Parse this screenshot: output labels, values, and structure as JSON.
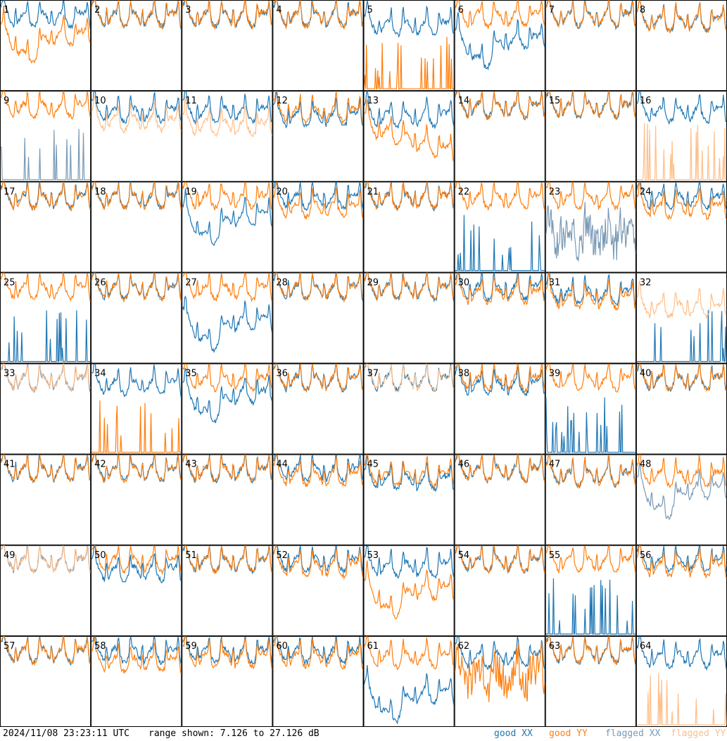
{
  "footer": {
    "timestamp": "2024/11/08 23:23:11 UTC",
    "range_text": "range shown: 7.126 to 27.126 dB"
  },
  "colors": {
    "good_xx": "#1f77b4",
    "good_yy": "#ff7f0e",
    "flagged_xx": "#7a9ab5",
    "flagged_yy": "#ffbf8a",
    "border": "#000000"
  },
  "chart_data": {
    "type": "line",
    "layout": "small-multiples 8x8",
    "ylim": [
      7.126,
      27.126
    ],
    "yunit": "dB",
    "legend": {
      "placement": "bottom-right",
      "entries": [
        {
          "name": "good XX",
          "color": "#1f77b4"
        },
        {
          "name": "good YY",
          "color": "#ff7f0e"
        },
        {
          "name": "flagged XX",
          "color": "#7a9ab5"
        },
        {
          "name": "flagged YY",
          "color": "#ffbf8a"
        }
      ]
    },
    "panels": [
      {
        "label": "1",
        "xx": {
          "state": "good",
          "level": 23
        },
        "yy": {
          "state": "good",
          "level": 19,
          "dip": true
        }
      },
      {
        "label": "2",
        "xx": {
          "state": "good",
          "level": 23
        },
        "yy": {
          "state": "good",
          "level": 23
        }
      },
      {
        "label": "3",
        "xx": {
          "state": "good",
          "level": 23
        },
        "yy": {
          "state": "good",
          "level": 23
        }
      },
      {
        "label": "4",
        "xx": {
          "state": "good",
          "level": 23
        },
        "yy": {
          "state": "good",
          "level": 23
        }
      },
      {
        "label": "5",
        "xx": {
          "state": "good",
          "level": 21
        },
        "yy": {
          "state": "good",
          "level": 8,
          "spiky": true
        }
      },
      {
        "label": "6",
        "xx": {
          "state": "good",
          "level": 18,
          "dip": true
        },
        "yy": {
          "state": "good",
          "level": 23
        }
      },
      {
        "label": "7",
        "xx": {
          "state": "good",
          "level": 23
        },
        "yy": {
          "state": "good",
          "level": 23
        }
      },
      {
        "label": "8",
        "xx": {
          "state": "good",
          "level": 22
        },
        "yy": {
          "state": "good",
          "level": 22
        }
      },
      {
        "label": "9",
        "xx": {
          "state": "flagged",
          "level": 9,
          "spiky": true
        },
        "yy": {
          "state": "good",
          "level": 23
        }
      },
      {
        "label": "10",
        "xx": {
          "state": "good",
          "level": 22
        },
        "yy": {
          "state": "flagged",
          "level": 20
        }
      },
      {
        "label": "11",
        "xx": {
          "state": "good",
          "level": 22
        },
        "yy": {
          "state": "flagged",
          "level": 19
        }
      },
      {
        "label": "12",
        "xx": {
          "state": "good",
          "level": 21
        },
        "yy": {
          "state": "good",
          "level": 22
        }
      },
      {
        "label": "13",
        "xx": {
          "state": "good",
          "level": 21
        },
        "yy": {
          "state": "good",
          "level": 19,
          "slope": true
        }
      },
      {
        "label": "14",
        "xx": {
          "state": "good",
          "level": 23
        },
        "yy": {
          "state": "good",
          "level": 23
        }
      },
      {
        "label": "15",
        "xx": {
          "state": "good",
          "level": 23
        },
        "yy": {
          "state": "good",
          "level": 23
        }
      },
      {
        "label": "16",
        "xx": {
          "state": "good",
          "level": 22
        },
        "yy": {
          "state": "flagged",
          "level": 8,
          "spiky": true
        }
      },
      {
        "label": "17",
        "xx": {
          "state": "good",
          "level": 23
        },
        "yy": {
          "state": "good",
          "level": 23
        }
      },
      {
        "label": "18",
        "xx": {
          "state": "good",
          "level": 23
        },
        "yy": {
          "state": "good",
          "level": 23
        }
      },
      {
        "label": "19",
        "xx": {
          "state": "good",
          "level": 19,
          "dip": true
        },
        "yy": {
          "state": "good",
          "level": 23
        }
      },
      {
        "label": "20",
        "xx": {
          "state": "good",
          "level": 23
        },
        "yy": {
          "state": "good",
          "level": 21
        }
      },
      {
        "label": "21",
        "xx": {
          "state": "good",
          "level": 23
        },
        "yy": {
          "state": "good",
          "level": 23
        }
      },
      {
        "label": "22",
        "xx": {
          "state": "good",
          "level": 8,
          "spiky": true
        },
        "yy": {
          "state": "good",
          "level": 23
        }
      },
      {
        "label": "23",
        "xx": {
          "state": "flagged",
          "level": 15,
          "noisy": true
        },
        "yy": {
          "state": "good",
          "level": 23
        }
      },
      {
        "label": "24",
        "xx": {
          "state": "good",
          "level": 23
        },
        "yy": {
          "state": "good",
          "level": 21
        }
      },
      {
        "label": "25",
        "xx": {
          "state": "good",
          "level": 8,
          "spiky": true
        },
        "yy": {
          "state": "good",
          "level": 23
        }
      },
      {
        "label": "26",
        "xx": {
          "state": "good",
          "level": 23
        },
        "yy": {
          "state": "good",
          "level": 23
        }
      },
      {
        "label": "27",
        "xx": {
          "state": "good",
          "level": 16,
          "dip": true
        },
        "yy": {
          "state": "good",
          "level": 23
        }
      },
      {
        "label": "28",
        "xx": {
          "state": "good",
          "level": 23
        },
        "yy": {
          "state": "good",
          "level": 23
        }
      },
      {
        "label": "29",
        "xx": {
          "state": "good",
          "level": 23
        },
        "yy": {
          "state": "good",
          "level": 23
        }
      },
      {
        "label": "30",
        "xx": {
          "state": "good",
          "level": 23
        },
        "yy": {
          "state": "good",
          "level": 22
        }
      },
      {
        "label": "31",
        "xx": {
          "state": "good",
          "level": 22
        },
        "yy": {
          "state": "good",
          "level": 21
        }
      },
      {
        "label": "32",
        "xx": {
          "state": "good",
          "level": 8,
          "spiky": true
        },
        "yy": {
          "state": "flagged",
          "level": 19
        }
      },
      {
        "label": "33",
        "xx": {
          "state": "flagged",
          "level": 23
        },
        "yy": {
          "state": "flagged",
          "level": 23
        }
      },
      {
        "label": "34",
        "xx": {
          "state": "good",
          "level": 22
        },
        "yy": {
          "state": "good",
          "level": 8,
          "spiky": true
        }
      },
      {
        "label": "35",
        "xx": {
          "state": "good",
          "level": 20,
          "dip": true
        },
        "yy": {
          "state": "good",
          "level": 23
        }
      },
      {
        "label": "36",
        "xx": {
          "state": "good",
          "level": 23
        },
        "yy": {
          "state": "good",
          "level": 23
        }
      },
      {
        "label": "37",
        "xx": {
          "state": "good",
          "level": 23
        },
        "yy": {
          "state": "flagged",
          "level": 23
        }
      },
      {
        "label": "38",
        "xx": {
          "state": "good",
          "level": 22
        },
        "yy": {
          "state": "good",
          "level": 23
        }
      },
      {
        "label": "39",
        "xx": {
          "state": "good",
          "level": 8,
          "spiky": true
        },
        "yy": {
          "state": "good",
          "level": 23
        }
      },
      {
        "label": "40",
        "xx": {
          "state": "good",
          "level": 23
        },
        "yy": {
          "state": "good",
          "level": 23
        }
      },
      {
        "label": "41",
        "xx": {
          "state": "good",
          "level": 23
        },
        "yy": {
          "state": "good",
          "level": 23
        }
      },
      {
        "label": "42",
        "xx": {
          "state": "good",
          "level": 23
        },
        "yy": {
          "state": "good",
          "level": 23
        }
      },
      {
        "label": "43",
        "xx": {
          "state": "good",
          "level": 23
        },
        "yy": {
          "state": "good",
          "level": 23
        }
      },
      {
        "label": "44",
        "xx": {
          "state": "good",
          "level": 23
        },
        "yy": {
          "state": "good",
          "level": 22
        }
      },
      {
        "label": "45",
        "xx": {
          "state": "good",
          "level": 21
        },
        "yy": {
          "state": "good",
          "level": 22
        }
      },
      {
        "label": "46",
        "xx": {
          "state": "good",
          "level": 23
        },
        "yy": {
          "state": "good",
          "level": 23
        }
      },
      {
        "label": "47",
        "xx": {
          "state": "good",
          "level": 22
        },
        "yy": {
          "state": "good",
          "level": 22
        }
      },
      {
        "label": "48",
        "xx": {
          "state": "flagged",
          "level": 19,
          "dip": true
        },
        "yy": {
          "state": "good",
          "level": 22
        }
      },
      {
        "label": "49",
        "xx": {
          "state": "flagged",
          "level": 23
        },
        "yy": {
          "state": "flagged",
          "level": 23
        }
      },
      {
        "label": "50",
        "xx": {
          "state": "good",
          "level": 21
        },
        "yy": {
          "state": "good",
          "level": 23
        }
      },
      {
        "label": "51",
        "xx": {
          "state": "good",
          "level": 23
        },
        "yy": {
          "state": "good",
          "level": 23
        }
      },
      {
        "label": "52",
        "xx": {
          "state": "good",
          "level": 23
        },
        "yy": {
          "state": "good",
          "level": 22
        }
      },
      {
        "label": "53",
        "xx": {
          "state": "good",
          "level": 22
        },
        "yy": {
          "state": "good",
          "level": 17,
          "dip": true
        }
      },
      {
        "label": "54",
        "xx": {
          "state": "good",
          "level": 23
        },
        "yy": {
          "state": "good",
          "level": 23
        }
      },
      {
        "label": "55",
        "xx": {
          "state": "good",
          "level": 9,
          "spiky": true
        },
        "yy": {
          "state": "good",
          "level": 23
        }
      },
      {
        "label": "56",
        "xx": {
          "state": "good",
          "level": 23
        },
        "yy": {
          "state": "good",
          "level": 22
        }
      },
      {
        "label": "57",
        "xx": {
          "state": "good",
          "level": 23
        },
        "yy": {
          "state": "good",
          "level": 23
        }
      },
      {
        "label": "58",
        "xx": {
          "state": "good",
          "level": 23
        },
        "yy": {
          "state": "good",
          "level": 21
        }
      },
      {
        "label": "59",
        "xx": {
          "state": "good",
          "level": 23
        },
        "yy": {
          "state": "good",
          "level": 22
        }
      },
      {
        "label": "60",
        "xx": {
          "state": "good",
          "level": 23
        },
        "yy": {
          "state": "good",
          "level": 22
        }
      },
      {
        "label": "61",
        "xx": {
          "state": "good",
          "level": 14,
          "dip": true
        },
        "yy": {
          "state": "good",
          "level": 22
        }
      },
      {
        "label": "62",
        "xx": {
          "state": "good",
          "level": 22
        },
        "yy": {
          "state": "good",
          "level": 18,
          "noisy": true
        }
      },
      {
        "label": "63",
        "xx": {
          "state": "good",
          "level": 23
        },
        "yy": {
          "state": "good",
          "level": 23
        }
      },
      {
        "label": "64",
        "xx": {
          "state": "good",
          "level": 22
        },
        "yy": {
          "state": "flagged",
          "level": 8,
          "spiky": true
        }
      }
    ]
  }
}
